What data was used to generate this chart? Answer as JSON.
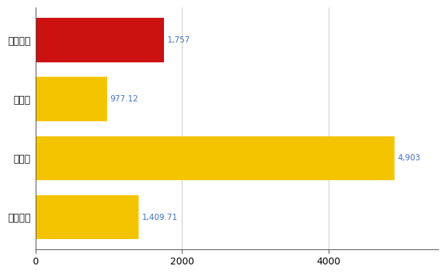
{
  "categories": [
    "全国平均",
    "県最大",
    "県平均",
    "中津川市"
  ],
  "values": [
    1409.71,
    4903,
    977.12,
    1757
  ],
  "bar_colors": [
    "#F5C400",
    "#F5C400",
    "#F5C400",
    "#CC1111"
  ],
  "value_labels": [
    "1,409.71",
    "4,903",
    "977.12",
    "1,757"
  ],
  "label_color": "#4472C4",
  "xlim": [
    0,
    5500
  ],
  "xticks": [
    0,
    2000,
    4000
  ],
  "bar_height": 0.75,
  "grid_color": "#CCCCCC",
  "background_color": "#FFFFFF",
  "label_fontsize": 10,
  "tick_fontsize": 10,
  "value_fontsize": 8.5
}
